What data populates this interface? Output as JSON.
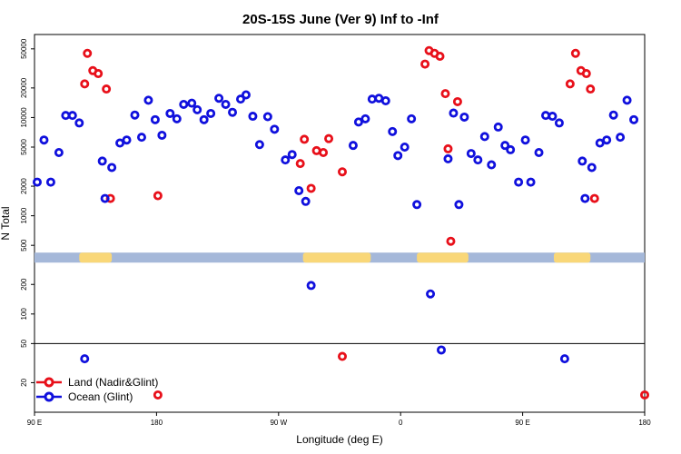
{
  "chart_data": {
    "type": "scatter",
    "title": "20S-15S June (Ver 9)   Inf to -Inf",
    "xlabel": "Longitude (deg E)",
    "ylabel": "N Total",
    "x_ticks": [
      {
        "value": 90,
        "label": "90 E"
      },
      {
        "value": 180,
        "label": "180"
      },
      {
        "value": 270,
        "label": "90 W"
      },
      {
        "value": 360,
        "label": "0"
      },
      {
        "value": 450,
        "label": "90 E"
      },
      {
        "value": 540,
        "label": "180"
      }
    ],
    "xlim": [
      90,
      540
    ],
    "y_scale": "log",
    "y_ticks": [
      {
        "value": 50000,
        "label": "50000"
      },
      {
        "value": 20000,
        "label": "20000"
      },
      {
        "value": 10000,
        "label": "10000"
      },
      {
        "value": 5000,
        "label": "5000"
      },
      {
        "value": 2000,
        "label": "2000"
      },
      {
        "value": 1000,
        "label": "1000"
      },
      {
        "value": 500,
        "label": "500"
      },
      {
        "value": 200,
        "label": "200"
      },
      {
        "value": 100,
        "label": "100"
      },
      {
        "value": 50,
        "label": "50"
      },
      {
        "value": 20,
        "label": "20"
      }
    ],
    "ylim": [
      10,
      70000
    ],
    "separator_y": 50,
    "land_sea_strip": {
      "y": 375,
      "ocean_color": "#a5b8d9",
      "land_color": "#f9d778",
      "land_spans": [
        [
          123,
          147
        ],
        [
          288,
          338
        ],
        [
          372,
          410
        ],
        [
          473,
          500
        ]
      ]
    },
    "legend": {
      "placement": "bottom-left",
      "entries": [
        "Land (Nadir&Glint)",
        "Ocean (Glint)"
      ]
    },
    "series": [
      {
        "name": "Land (Nadir&Glint)",
        "color": "#e8101a",
        "points": [
          [
            127,
            22000
          ],
          [
            129,
            45000
          ],
          [
            133,
            30000
          ],
          [
            137,
            28000
          ],
          [
            143,
            19500
          ],
          [
            146,
            1500
          ],
          [
            181,
            1600
          ],
          [
            181,
            15
          ],
          [
            286,
            3400
          ],
          [
            289,
            6000
          ],
          [
            294,
            1900
          ],
          [
            298,
            4600
          ],
          [
            303,
            4400
          ],
          [
            307,
            6100
          ],
          [
            317,
            2800
          ],
          [
            317,
            37
          ],
          [
            378,
            35000
          ],
          [
            381,
            48000
          ],
          [
            385,
            45000
          ],
          [
            389,
            42000
          ],
          [
            393,
            17500
          ],
          [
            395,
            4800
          ],
          [
            397,
            550
          ],
          [
            402,
            14500
          ],
          [
            485,
            22000
          ],
          [
            489,
            45000
          ],
          [
            493,
            30000
          ],
          [
            497,
            28000
          ],
          [
            500,
            19500
          ],
          [
            503,
            1500
          ],
          [
            540,
            15
          ]
        ]
      },
      {
        "name": "Ocean (Glint)",
        "color": "#1010dd",
        "points": [
          [
            92,
            2200
          ],
          [
            97,
            5900
          ],
          [
            102,
            2200
          ],
          [
            108,
            4400
          ],
          [
            113,
            10500
          ],
          [
            118,
            10500
          ],
          [
            123,
            8800
          ],
          [
            127,
            35
          ],
          [
            140,
            3600
          ],
          [
            142,
            1500
          ],
          [
            147,
            3100
          ],
          [
            153,
            5500
          ],
          [
            158,
            5900
          ],
          [
            164,
            10600
          ],
          [
            169,
            6300
          ],
          [
            174,
            15000
          ],
          [
            179,
            9500
          ],
          [
            184,
            6600
          ],
          [
            190,
            11000
          ],
          [
            195,
            9700
          ],
          [
            200,
            13600
          ],
          [
            206,
            14000
          ],
          [
            210,
            12000
          ],
          [
            215,
            9500
          ],
          [
            220,
            11000
          ],
          [
            226,
            15700
          ],
          [
            231,
            13600
          ],
          [
            236,
            11300
          ],
          [
            242,
            15400
          ],
          [
            246,
            17000
          ],
          [
            251,
            10300
          ],
          [
            256,
            5300
          ],
          [
            262,
            10200
          ],
          [
            267,
            7600
          ],
          [
            275,
            3700
          ],
          [
            280,
            4200
          ],
          [
            285,
            1800
          ],
          [
            290,
            1400
          ],
          [
            294,
            195
          ],
          [
            325,
            5200
          ],
          [
            329,
            9000
          ],
          [
            334,
            9700
          ],
          [
            339,
            15400
          ],
          [
            344,
            15700
          ],
          [
            349,
            14800
          ],
          [
            354,
            7200
          ],
          [
            358,
            4100
          ],
          [
            363,
            5000
          ],
          [
            368,
            9700
          ],
          [
            372,
            1300
          ],
          [
            382,
            160
          ],
          [
            390,
            43
          ],
          [
            395,
            3800
          ],
          [
            399,
            11100
          ],
          [
            403,
            1300
          ],
          [
            407,
            10100
          ],
          [
            412,
            4300
          ],
          [
            417,
            3700
          ],
          [
            422,
            6400
          ],
          [
            427,
            3300
          ],
          [
            432,
            8000
          ],
          [
            437,
            5200
          ],
          [
            441,
            4700
          ],
          [
            447,
            2200
          ],
          [
            452,
            5900
          ],
          [
            456,
            2200
          ],
          [
            462,
            4400
          ],
          [
            467,
            10500
          ],
          [
            472,
            10300
          ],
          [
            477,
            8800
          ],
          [
            481,
            35
          ],
          [
            494,
            3600
          ],
          [
            496,
            1500
          ],
          [
            501,
            3100
          ],
          [
            507,
            5500
          ],
          [
            512,
            5900
          ],
          [
            517,
            10600
          ],
          [
            522,
            6300
          ],
          [
            527,
            15000
          ],
          [
            532,
            9500
          ]
        ]
      }
    ]
  }
}
